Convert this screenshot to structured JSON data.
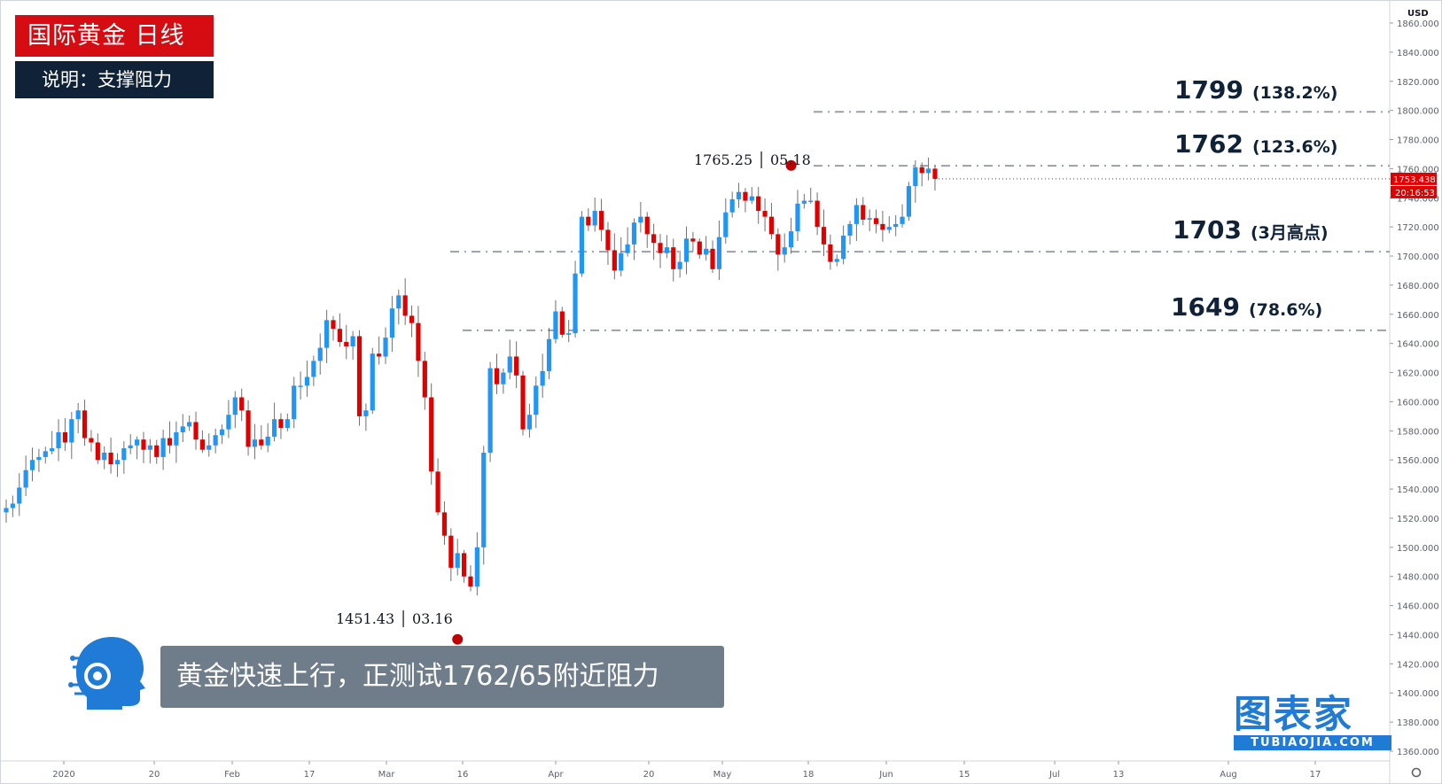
{
  "title": "国际黄金  日线",
  "subtitle": "说明：支撑阻力",
  "caption": "黄金快速上行，正测试1762/65附近阻力",
  "logo": {
    "name": "图表家",
    "domain": "TUBIAOJIA.COM",
    "icon": "robot-head-icon",
    "color": "#1f7bd6"
  },
  "colors": {
    "up": "#2196f3",
    "down": "#e00000",
    "title_bg": "#d50d12",
    "subtitle_bg": "#0f2237",
    "caption_bg": "#6f7d8a"
  },
  "levels": [
    {
      "value": 1799,
      "label": "1799",
      "note": "(138.2%)"
    },
    {
      "value": 1762,
      "label": "1762",
      "note": "(123.6%)"
    },
    {
      "value": 1703,
      "label": "1703",
      "note": "(3月高点)"
    },
    {
      "value": 1649,
      "label": "1649",
      "note": "(78.6%)"
    }
  ],
  "annotations": {
    "high": {
      "value": 1765.25,
      "text": "1765.25 │ 05.18"
    },
    "low": {
      "value": 1451.43,
      "text": "1451.43 │ 03.16"
    }
  },
  "chart_data": {
    "type": "candlestick",
    "currency": "USD",
    "ylim": [
      1350,
      1860
    ],
    "y_ticks": [
      "1860.000",
      "1840.000",
      "1820.000",
      "1800.000",
      "1780.000",
      "1760.000",
      "1740.000",
      "1720.000",
      "1700.000",
      "1680.000",
      "1660.000",
      "1640.000",
      "1620.000",
      "1600.000",
      "1580.000",
      "1560.000",
      "1540.000",
      "1520.000",
      "1500.000",
      "1480.000",
      "1460.000",
      "1440.000",
      "1420.000",
      "1400.000",
      "1380.000",
      "1360.000"
    ],
    "x_ticks": [
      "2020",
      "20",
      "Feb",
      "17",
      "Mar",
      "16",
      "Apr",
      "20",
      "May",
      "18",
      "Jun",
      "15",
      "Jul",
      "13",
      "Aug",
      "17"
    ],
    "price_label": "1753.438",
    "countdown_label": "20:16:53",
    "closes": [
      1527,
      1530,
      1541,
      1553,
      1560,
      1562,
      1566,
      1568,
      1579,
      1572,
      1588,
      1594,
      1575,
      1572,
      1560,
      1565,
      1557,
      1560,
      1568,
      1570,
      1574,
      1567,
      1570,
      1562,
      1575,
      1570,
      1579,
      1583,
      1586,
      1574,
      1567,
      1570,
      1577,
      1581,
      1591,
      1603,
      1594,
      1569,
      1574,
      1570,
      1576,
      1588,
      1582,
      1588,
      1611,
      1611,
      1617,
      1628,
      1637,
      1656,
      1650,
      1641,
      1638,
      1645,
      1590,
      1594,
      1633,
      1631,
      1644,
      1664,
      1673,
      1659,
      1654,
      1628,
      1603,
      1552,
      1524,
      1508,
      1486,
      1496,
      1480,
      1473,
      1500,
      1565,
      1623,
      1612,
      1620,
      1631,
      1618,
      1581,
      1591,
      1611,
      1621,
      1643,
      1662,
      1646,
      1647,
      1688,
      1727,
      1721,
      1731,
      1718,
      1704,
      1690,
      1702,
      1708,
      1723,
      1727,
      1715,
      1709,
      1702,
      1706,
      1691,
      1696,
      1712,
      1710,
      1701,
      1705,
      1691,
      1713,
      1730,
      1739,
      1744,
      1738,
      1741,
      1731,
      1727,
      1715,
      1701,
      1706,
      1717,
      1736,
      1738,
      1738,
      1720,
      1708,
      1696,
      1698,
      1714,
      1722,
      1735,
      1725,
      1726,
      1722,
      1718,
      1720,
      1722,
      1727,
      1748,
      1761,
      1757,
      1760,
      1753
    ],
    "y_axis_offset": 5
  }
}
